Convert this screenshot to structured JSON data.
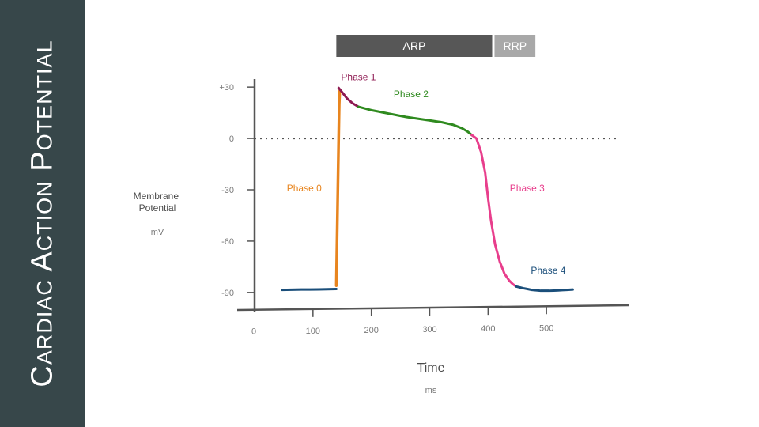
{
  "sidebar": {
    "title": "Cardiac Action Potential"
  },
  "chart_data": {
    "type": "line",
    "title": "",
    "ylabel": "Membrane Potential",
    "yunit": "mV",
    "xlabel": "Time",
    "xunit": "ms",
    "xlim": [
      0,
      600
    ],
    "ylim": [
      -97,
      37
    ],
    "x_ticks": [
      0,
      100,
      200,
      300,
      400,
      500
    ],
    "y_ticks": [
      {
        "value": 30,
        "label": "+30"
      },
      {
        "value": 0,
        "label": "0"
      },
      {
        "value": -30,
        "label": "-30"
      },
      {
        "value": -60,
        "label": "-60"
      },
      {
        "value": -90,
        "label": "-90"
      }
    ],
    "reference_line": {
      "y": 0,
      "style": "dotted"
    },
    "series": [
      {
        "name": "Phase 4",
        "color": "#1a4e7a",
        "x": [
          47,
          80,
          110,
          140
        ],
        "y": [
          -88.5,
          -88.3,
          -88.2,
          -88
        ]
      },
      {
        "name": "Phase 0",
        "color": "#e8851f",
        "x": [
          140,
          144,
          145,
          146
        ],
        "y": [
          -86,
          0,
          20,
          28
        ]
      },
      {
        "name": "Phase 1",
        "color": "#8e1a52",
        "x": [
          144,
          150,
          158,
          168,
          178
        ],
        "y": [
          29.5,
          27,
          23.5,
          20.5,
          18.5
        ]
      },
      {
        "name": "Phase 2",
        "color": "#2f8a1f",
        "x": [
          178,
          200,
          230,
          260,
          290,
          320,
          340,
          355,
          365,
          372
        ],
        "y": [
          18.5,
          16.5,
          14.5,
          12.5,
          11,
          9.5,
          8,
          6,
          4,
          2
        ]
      },
      {
        "name": "Phase 3",
        "color": "#e83e8c",
        "x": [
          372,
          380,
          388,
          395,
          400,
          405,
          412,
          420,
          428,
          436,
          442,
          448
        ],
        "y": [
          2,
          0,
          -8,
          -20,
          -35,
          -48,
          -62,
          -72,
          -79,
          -83,
          -85,
          -86.5
        ]
      },
      {
        "name": "Phase 4",
        "color": "#1a4e7a",
        "x": [
          448,
          460,
          475,
          490,
          505,
          520,
          535,
          545
        ],
        "y": [
          -86.5,
          -87.5,
          -88.5,
          -89,
          -89,
          -88.8,
          -88.5,
          -88.3
        ]
      }
    ],
    "phase_labels": [
      {
        "text": "Phase 0",
        "x": 85,
        "y": -31,
        "color": "#e8851f"
      },
      {
        "text": "Phase 1",
        "x": 178,
        "y": 34,
        "color": "#8e1a52"
      },
      {
        "text": "Phase 2",
        "x": 268,
        "y": 24,
        "color": "#2f8a1f"
      },
      {
        "text": "Phase 3",
        "x": 467,
        "y": -31,
        "color": "#e83e8c"
      },
      {
        "text": "Phase 4",
        "x": 503,
        "y": -79,
        "color": "#1a4e7a"
      }
    ],
    "periods": [
      {
        "label": "ARP",
        "start": 140,
        "end": 407,
        "color": "#575757"
      },
      {
        "label": "RRP",
        "start": 411,
        "end": 481,
        "color": "#a8a8a8"
      }
    ]
  }
}
